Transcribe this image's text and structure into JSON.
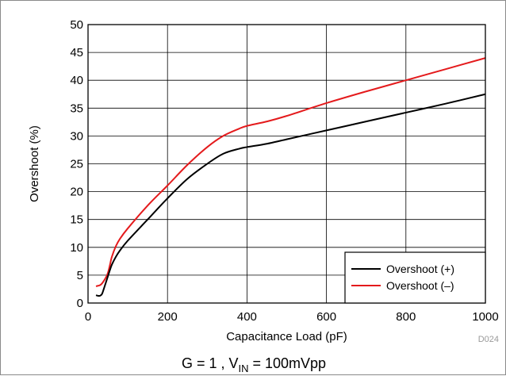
{
  "chart_data": {
    "type": "line",
    "xlabel": "Capacitance Load (pF)",
    "ylabel": "Overshoot (%)",
    "xlim": [
      0,
      1000
    ],
    "ylim": [
      0,
      50
    ],
    "x_ticks": [
      0,
      200,
      400,
      600,
      800,
      1000
    ],
    "y_ticks": [
      0,
      5,
      10,
      15,
      20,
      25,
      30,
      35,
      40,
      45,
      50
    ],
    "grid": true,
    "legend_position": "bottom-right",
    "series": [
      {
        "name": "Overshoot (+)",
        "color": "#000000",
        "x": [
          20,
          25,
          30,
          35,
          40,
          45,
          50,
          55,
          60,
          70,
          80,
          100,
          150,
          200,
          250,
          300,
          340,
          380,
          400,
          450,
          500,
          600,
          700,
          800,
          900,
          1000
        ],
        "y": [
          1.4,
          1.3,
          1.3,
          1.6,
          2.6,
          3.7,
          4.8,
          5.9,
          6.9,
          8.3,
          9.4,
          11.2,
          15.0,
          18.8,
          22.3,
          25.0,
          26.8,
          27.7,
          28.0,
          28.6,
          29.4,
          31.0,
          32.6,
          34.2,
          35.8,
          37.5
        ]
      },
      {
        "name": "Overshoot (–)",
        "color": "#e41a1c",
        "x": [
          20,
          25,
          30,
          35,
          40,
          45,
          50,
          55,
          60,
          70,
          80,
          100,
          150,
          200,
          250,
          300,
          340,
          380,
          400,
          450,
          500,
          600,
          700,
          800,
          900,
          1000
        ],
        "y": [
          3.0,
          3.1,
          3.2,
          3.5,
          4.0,
          4.6,
          5.4,
          6.8,
          8.3,
          10.2,
          11.5,
          13.4,
          17.5,
          21.1,
          24.8,
          28.0,
          30.0,
          31.3,
          31.8,
          32.6,
          33.6,
          35.9,
          38.0,
          40.0,
          42.0,
          44.0
        ]
      }
    ],
    "caption": {
      "main": "G = 1 , V",
      "sub": "IN",
      "tail": " = 100mVpp"
    },
    "figure_code": "D024"
  }
}
